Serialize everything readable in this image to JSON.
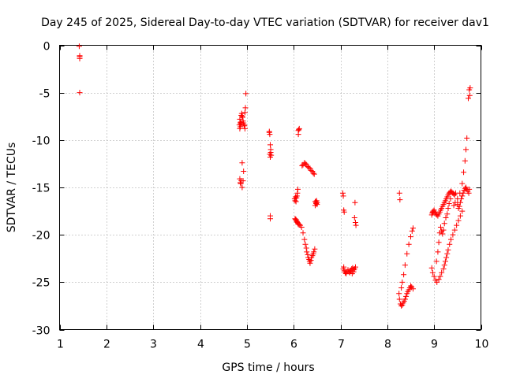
{
  "chart_data": {
    "type": "scatter",
    "title": "Day 245 of 2025, Sidereal Day-to-day VTEC variation (SDTVAR) for receiver dav1",
    "xlabel": "GPS time / hours",
    "ylabel": "SDTVAR / TECUs",
    "xlim": [
      1,
      10
    ],
    "ylim": [
      -30,
      0
    ],
    "xticks": [
      1,
      2,
      3,
      4,
      5,
      6,
      7,
      8,
      9,
      10
    ],
    "yticks": [
      0,
      -5,
      -10,
      -15,
      -20,
      -25,
      -30
    ],
    "grid": true,
    "marker": "+",
    "color": "#ff0000",
    "series": [
      {
        "name": "SDTVAR",
        "x": [
          1.42,
          1.43,
          1.43,
          1.43,
          1.43,
          4.85,
          4.86,
          4.87,
          4.88,
          4.89,
          4.9,
          4.91,
          4.92,
          4.93,
          4.94,
          4.95,
          4.96,
          4.97,
          4.88,
          4.87,
          4.86,
          4.85,
          4.84,
          4.9,
          4.93,
          4.96,
          4.98,
          4.85,
          4.86,
          4.88,
          4.9,
          4.92,
          5.48,
          5.49,
          5.5,
          5.51,
          5.52,
          5.49,
          5.5,
          5.5,
          5.51,
          5.48,
          5.5,
          6.02,
          6.03,
          6.04,
          6.05,
          6.06,
          6.07,
          6.08,
          6.09,
          6.1,
          6.1,
          6.11,
          6.12,
          6.03,
          6.04,
          6.06,
          6.08,
          6.1,
          6.05,
          6.07,
          6.09,
          6.12,
          6.14,
          6.17,
          6.2,
          6.23,
          6.25,
          6.27,
          6.28,
          6.3,
          6.31,
          6.33,
          6.34,
          6.35,
          6.37,
          6.38,
          6.4,
          6.42,
          6.43,
          6.45,
          6.18,
          6.2,
          6.23,
          6.25,
          6.27,
          6.3,
          6.32,
          6.35,
          6.37,
          6.4,
          6.42,
          6.44,
          6.46,
          6.48,
          6.5,
          6.48,
          6.47,
          6.46,
          6.5,
          6.49,
          7.05,
          7.06,
          7.07,
          7.08,
          7.07,
          7.06,
          7.08,
          7.1,
          7.12,
          7.14,
          7.16,
          7.18,
          7.2,
          7.22,
          7.24,
          7.26,
          7.28,
          7.3,
          7.32,
          7.3,
          7.32,
          7.33,
          7.31,
          7.28,
          7.25,
          8.26,
          8.27,
          8.25,
          8.26,
          8.28,
          8.3,
          8.32,
          8.34,
          8.36,
          8.38,
          8.4,
          8.42,
          8.44,
          8.46,
          8.48,
          8.5,
          8.52,
          8.55,
          8.3,
          8.32,
          8.35,
          8.38,
          8.42,
          8.46,
          8.5,
          8.53,
          8.55,
          8.95,
          8.96,
          8.97,
          8.98,
          9.0,
          9.02,
          9.04,
          9.06,
          9.08,
          9.1,
          9.12,
          9.14,
          9.16,
          9.18,
          9.2,
          9.22,
          9.24,
          9.26,
          9.28,
          9.3,
          9.32,
          9.34,
          9.36,
          9.38,
          9.4,
          9.42,
          9.44,
          9.46,
          8.95,
          8.97,
          9.0,
          9.03,
          9.06,
          9.1,
          9.13,
          9.16,
          9.2,
          9.22,
          9.24,
          9.26,
          9.28,
          9.3,
          9.33,
          9.36,
          9.4,
          9.44,
          9.48,
          9.52,
          9.56,
          9.6,
          9.05,
          9.08,
          9.1,
          9.12,
          9.14,
          9.16,
          9.18,
          9.2,
          9.22,
          9.25,
          9.28,
          9.3,
          9.32,
          9.35,
          9.5,
          9.52,
          9.54,
          9.56,
          9.58,
          9.6,
          9.62,
          9.64,
          9.66,
          9.68,
          9.7,
          9.72,
          9.74,
          9.75,
          9.76,
          9.77,
          9.75,
          9.73,
          9.7,
          9.68,
          9.66,
          9.63,
          9.6,
          9.55,
          9.5,
          9.45,
          9.42
        ],
        "y": [
          -0.1,
          -1.2,
          -1.4,
          -1.1,
          -5.0,
          -14.1,
          -14.5,
          -14.6,
          -14.3,
          -7.2,
          -7.5,
          -7.6,
          -8.0,
          -8.2,
          -8.4,
          -8.5,
          -7.1,
          -6.6,
          -8.3,
          -8.1,
          -8.6,
          -8.8,
          -8.4,
          -12.4,
          -13.3,
          -8.8,
          -5.1,
          -7.8,
          -8.2,
          -7.4,
          -15.0,
          -14.3,
          -9.2,
          -9.4,
          -10.5,
          -11.0,
          -11.6,
          -11.5,
          -18.0,
          -18.3,
          -11.3,
          -9.1,
          -11.8,
          -16.2,
          -16.4,
          -16.0,
          -16.5,
          -16.1,
          -15.9,
          -15.6,
          -15.2,
          -9.4,
          -9.0,
          -8.9,
          -8.8,
          -18.3,
          -18.4,
          -18.5,
          -18.7,
          -18.9,
          -18.4,
          -18.6,
          -18.8,
          -18.9,
          -19.0,
          -19.2,
          -19.8,
          -20.5,
          -21.0,
          -21.4,
          -21.8,
          -22.1,
          -22.4,
          -22.6,
          -22.8,
          -23.0,
          -22.7,
          -22.4,
          -22.2,
          -22.0,
          -21.8,
          -21.5,
          -12.7,
          -12.6,
          -12.4,
          -12.5,
          -12.6,
          -12.8,
          -12.9,
          -13.0,
          -13.2,
          -13.3,
          -13.5,
          -13.6,
          -16.5,
          -16.6,
          -16.8,
          -16.7,
          -16.5,
          -16.9,
          -16.6,
          -16.4,
          -15.6,
          -15.9,
          -17.4,
          -17.6,
          -23.4,
          -23.6,
          -23.8,
          -24.0,
          -24.1,
          -23.9,
          -23.7,
          -23.9,
          -24.0,
          -23.8,
          -23.6,
          -23.5,
          -23.7,
          -23.6,
          -23.4,
          -18.2,
          -18.7,
          -19.0,
          -16.6,
          -23.9,
          -24.1,
          -15.6,
          -16.3,
          -26.2,
          -26.8,
          -27.3,
          -27.5,
          -27.4,
          -27.2,
          -27.0,
          -26.8,
          -26.5,
          -26.2,
          -26.0,
          -25.8,
          -25.6,
          -25.4,
          -25.5,
          -25.7,
          -25.6,
          -25.0,
          -24.2,
          -23.2,
          -22.0,
          -21.0,
          -20.2,
          -19.6,
          -19.3,
          -17.9,
          -17.7,
          -17.6,
          -17.5,
          -17.4,
          -17.6,
          -17.8,
          -17.9,
          -18.0,
          -17.8,
          -17.6,
          -17.4,
          -17.2,
          -17.0,
          -16.8,
          -16.6,
          -16.4,
          -16.2,
          -16.0,
          -15.8,
          -15.6,
          -15.5,
          -15.4,
          -15.5,
          -15.6,
          -15.7,
          -15.8,
          -15.6,
          -23.5,
          -24.0,
          -24.4,
          -24.8,
          -25.0,
          -24.7,
          -24.4,
          -24.0,
          -23.6,
          -23.2,
          -22.8,
          -22.4,
          -22.0,
          -21.6,
          -21.0,
          -20.5,
          -20.0,
          -19.5,
          -19.0,
          -18.5,
          -18.0,
          -17.5,
          -22.8,
          -21.8,
          -20.8,
          -19.8,
          -19.2,
          -19.6,
          -19.9,
          -19.5,
          -18.8,
          -18.2,
          -17.8,
          -17.2,
          -16.7,
          -16.2,
          -16.8,
          -17.2,
          -17.0,
          -16.6,
          -16.2,
          -15.9,
          -15.6,
          -15.3,
          -15.1,
          -15.0,
          -15.2,
          -15.4,
          -15.6,
          -15.2,
          -5.3,
          -4.5,
          -4.7,
          -5.6,
          -9.8,
          -11.0,
          -12.2,
          -13.4,
          -14.6,
          -15.6,
          -16.2,
          -16.6,
          -16.9
        ]
      }
    ]
  }
}
